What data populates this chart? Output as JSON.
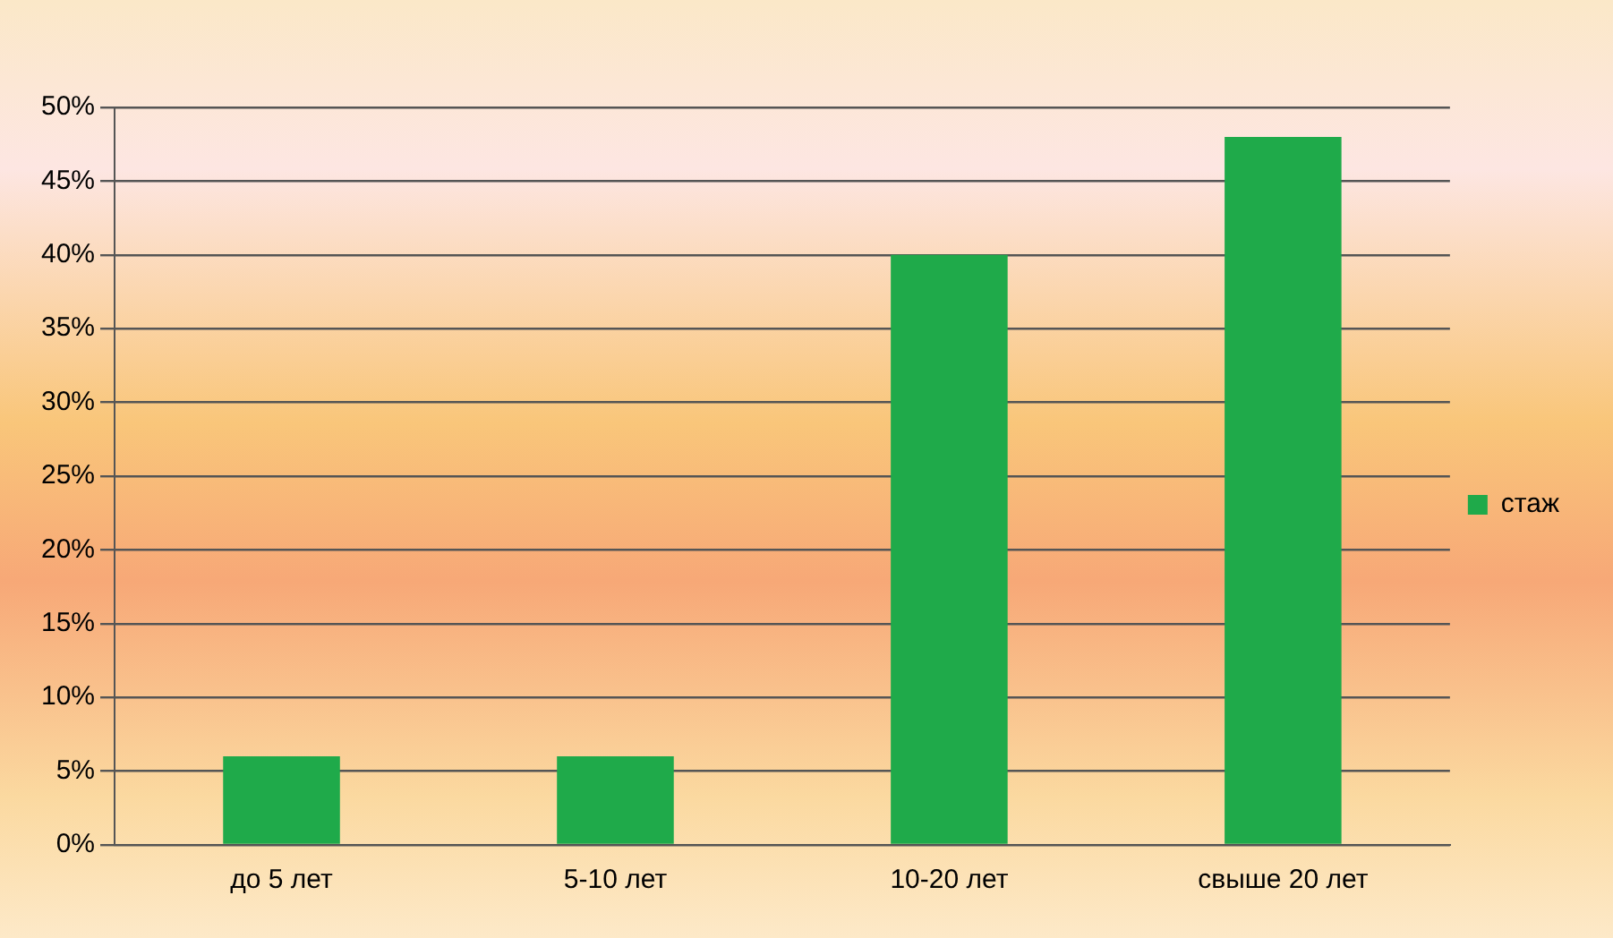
{
  "chart_data": {
    "type": "bar",
    "categories": [
      "до 5 лет",
      "5-10 лет",
      "10-20 лет",
      "свыше 20 лет"
    ],
    "series": [
      {
        "name": "стаж",
        "color": "#1faa4a",
        "values": [
          6,
          6,
          40,
          48
        ]
      }
    ],
    "ylim": [
      0,
      50
    ],
    "yticks": [
      {
        "value": 0,
        "label": "0%"
      },
      {
        "value": 5,
        "label": "5%"
      },
      {
        "value": 10,
        "label": "10%"
      },
      {
        "value": 15,
        "label": "15%"
      },
      {
        "value": 20,
        "label": "20%"
      },
      {
        "value": 25,
        "label": "25%"
      },
      {
        "value": 30,
        "label": "30%"
      },
      {
        "value": 35,
        "label": "35%"
      },
      {
        "value": 40,
        "label": "40%"
      },
      {
        "value": 45,
        "label": "45%"
      },
      {
        "value": 50,
        "label": "50%"
      }
    ],
    "grid": "y",
    "legend": "right"
  }
}
